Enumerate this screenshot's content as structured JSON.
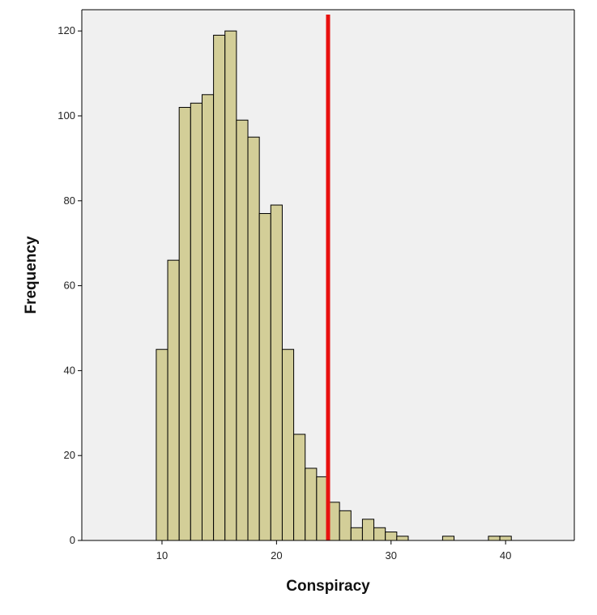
{
  "chart_data": {
    "type": "bar",
    "title": "",
    "xlabel": "Conspiracy",
    "ylabel": "Frequency",
    "xlim": [
      3,
      46
    ],
    "ylim": [
      0,
      125
    ],
    "xticks": [
      10,
      20,
      30,
      40
    ],
    "yticks": [
      0,
      20,
      40,
      60,
      80,
      100,
      120
    ],
    "bin_width": 1,
    "bins": [
      {
        "x": 10,
        "value": 45
      },
      {
        "x": 11,
        "value": 66
      },
      {
        "x": 12,
        "value": 102
      },
      {
        "x": 13,
        "value": 103
      },
      {
        "x": 14,
        "value": 105
      },
      {
        "x": 15,
        "value": 119
      },
      {
        "x": 16,
        "value": 120
      },
      {
        "x": 17,
        "value": 99
      },
      {
        "x": 18,
        "value": 95
      },
      {
        "x": 19,
        "value": 77
      },
      {
        "x": 20,
        "value": 79
      },
      {
        "x": 21,
        "value": 45
      },
      {
        "x": 22,
        "value": 25
      },
      {
        "x": 23,
        "value": 17
      },
      {
        "x": 24,
        "value": 15
      },
      {
        "x": 25,
        "value": 9
      },
      {
        "x": 26,
        "value": 7
      },
      {
        "x": 27,
        "value": 3
      },
      {
        "x": 28,
        "value": 5
      },
      {
        "x": 29,
        "value": 3
      },
      {
        "x": 30,
        "value": 2
      },
      {
        "x": 31,
        "value": 1
      },
      {
        "x": 35,
        "value": 1
      },
      {
        "x": 39,
        "value": 1
      },
      {
        "x": 40,
        "value": 1
      }
    ],
    "reference_line": {
      "x": 24.5,
      "color": "#e8110f"
    },
    "grid": false,
    "legend": "none",
    "colors": {
      "bar_fill": "#d3ce98",
      "bar_stroke": "#000000",
      "plot_background": "#f0f0f0"
    }
  }
}
